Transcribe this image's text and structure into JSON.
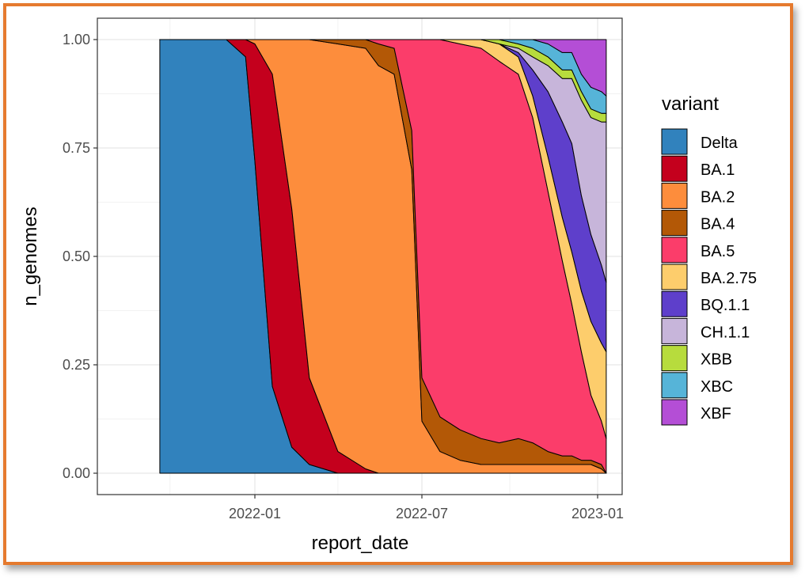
{
  "chart_data": {
    "type": "area",
    "stacked": true,
    "normalized": true,
    "xlabel": "report_date",
    "ylabel": "n_genomes",
    "x_ticks": [
      "2022-01",
      "2022-07",
      "2023-01"
    ],
    "y_ticks": [
      "0.00",
      "0.25",
      "0.50",
      "0.75",
      "1.00"
    ],
    "ylim": [
      0,
      1
    ],
    "xlim": [
      "2021-09-01",
      "2023-01-20"
    ],
    "grid": true,
    "legend_title": "variant",
    "legend_position": "right",
    "x": [
      "2021-09-20",
      "2021-12-01",
      "2021-12-22",
      "2022-01-01",
      "2022-01-20",
      "2022-02-10",
      "2022-03-01",
      "2022-04-01",
      "2022-05-01",
      "2022-05-15",
      "2022-06-01",
      "2022-06-20",
      "2022-07-01",
      "2022-07-20",
      "2022-08-10",
      "2022-09-01",
      "2022-09-20",
      "2022-10-10",
      "2022-10-25",
      "2022-11-10",
      "2022-11-25",
      "2022-12-05",
      "2022-12-15",
      "2022-12-25",
      "2023-01-05",
      "2023-01-10"
    ],
    "series": [
      {
        "name": "Delta",
        "color": "#3182bd",
        "values": [
          1.0,
          1.0,
          0.96,
          0.72,
          0.2,
          0.06,
          0.02,
          0.0,
          0.0,
          0.0,
          0.0,
          0.0,
          0.0,
          0.0,
          0.0,
          0.0,
          0.0,
          0.0,
          0.0,
          0.0,
          0.0,
          0.0,
          0.0,
          0.0,
          0.0,
          0.0
        ]
      },
      {
        "name": "BA.1",
        "color": "#c4001d",
        "values": [
          0.0,
          0.0,
          0.04,
          0.27,
          0.72,
          0.55,
          0.2,
          0.05,
          0.01,
          0.0,
          0.0,
          0.0,
          0.0,
          0.0,
          0.0,
          0.0,
          0.0,
          0.0,
          0.0,
          0.0,
          0.0,
          0.0,
          0.0,
          0.0,
          0.0,
          0.0
        ]
      },
      {
        "name": "BA.2",
        "color": "#fd8d3c",
        "values": [
          0.0,
          0.0,
          0.0,
          0.01,
          0.08,
          0.39,
          0.78,
          0.94,
          0.97,
          0.94,
          0.92,
          0.7,
          0.12,
          0.05,
          0.03,
          0.02,
          0.02,
          0.02,
          0.02,
          0.02,
          0.02,
          0.02,
          0.02,
          0.02,
          0.01,
          0.0
        ]
      },
      {
        "name": "BA.4",
        "color": "#b35806",
        "values": [
          0.0,
          0.0,
          0.0,
          0.0,
          0.0,
          0.0,
          0.0,
          0.01,
          0.02,
          0.05,
          0.06,
          0.09,
          0.1,
          0.08,
          0.07,
          0.06,
          0.05,
          0.06,
          0.05,
          0.03,
          0.02,
          0.02,
          0.01,
          0.01,
          0.01,
          0.0
        ]
      },
      {
        "name": "BA.5",
        "color": "#fb3d6a",
        "values": [
          0.0,
          0.0,
          0.0,
          0.0,
          0.0,
          0.0,
          0.0,
          0.0,
          0.0,
          0.01,
          0.02,
          0.21,
          0.78,
          0.87,
          0.89,
          0.9,
          0.88,
          0.84,
          0.75,
          0.6,
          0.45,
          0.35,
          0.25,
          0.15,
          0.1,
          0.08
        ]
      },
      {
        "name": "BA.2.75",
        "color": "#fdcd6c",
        "values": [
          0.0,
          0.0,
          0.0,
          0.0,
          0.0,
          0.0,
          0.0,
          0.0,
          0.0,
          0.0,
          0.0,
          0.0,
          0.0,
          0.0,
          0.01,
          0.02,
          0.04,
          0.04,
          0.05,
          0.08,
          0.1,
          0.12,
          0.14,
          0.17,
          0.18,
          0.2
        ]
      },
      {
        "name": "BQ.1.1",
        "color": "#5e3fcb",
        "values": [
          0.0,
          0.0,
          0.0,
          0.0,
          0.0,
          0.0,
          0.0,
          0.0,
          0.0,
          0.0,
          0.0,
          0.0,
          0.0,
          0.0,
          0.0,
          0.0,
          0.0,
          0.01,
          0.06,
          0.15,
          0.22,
          0.25,
          0.22,
          0.2,
          0.18,
          0.16
        ]
      },
      {
        "name": "CH.1.1",
        "color": "#c7b5da",
        "values": [
          0.0,
          0.0,
          0.0,
          0.0,
          0.0,
          0.0,
          0.0,
          0.0,
          0.0,
          0.0,
          0.0,
          0.0,
          0.0,
          0.0,
          0.0,
          0.0,
          0.0,
          0.01,
          0.03,
          0.06,
          0.1,
          0.15,
          0.22,
          0.27,
          0.33,
          0.37
        ]
      },
      {
        "name": "XBB",
        "color": "#b7dc3d",
        "values": [
          0.0,
          0.0,
          0.0,
          0.0,
          0.0,
          0.0,
          0.0,
          0.0,
          0.0,
          0.0,
          0.0,
          0.0,
          0.0,
          0.0,
          0.0,
          0.0,
          0.01,
          0.01,
          0.02,
          0.02,
          0.02,
          0.02,
          0.02,
          0.02,
          0.02,
          0.02
        ]
      },
      {
        "name": "XBC",
        "color": "#56b4d8",
        "values": [
          0.0,
          0.0,
          0.0,
          0.0,
          0.0,
          0.0,
          0.0,
          0.0,
          0.0,
          0.0,
          0.0,
          0.0,
          0.0,
          0.0,
          0.0,
          0.0,
          0.0,
          0.01,
          0.02,
          0.03,
          0.04,
          0.04,
          0.04,
          0.05,
          0.05,
          0.04
        ]
      },
      {
        "name": "XBF",
        "color": "#b44ed6",
        "values": [
          0.0,
          0.0,
          0.0,
          0.0,
          0.0,
          0.0,
          0.0,
          0.0,
          0.0,
          0.0,
          0.0,
          0.0,
          0.0,
          0.0,
          0.0,
          0.0,
          0.0,
          0.0,
          0.0,
          0.01,
          0.03,
          0.03,
          0.08,
          0.11,
          0.12,
          0.13
        ]
      }
    ]
  }
}
